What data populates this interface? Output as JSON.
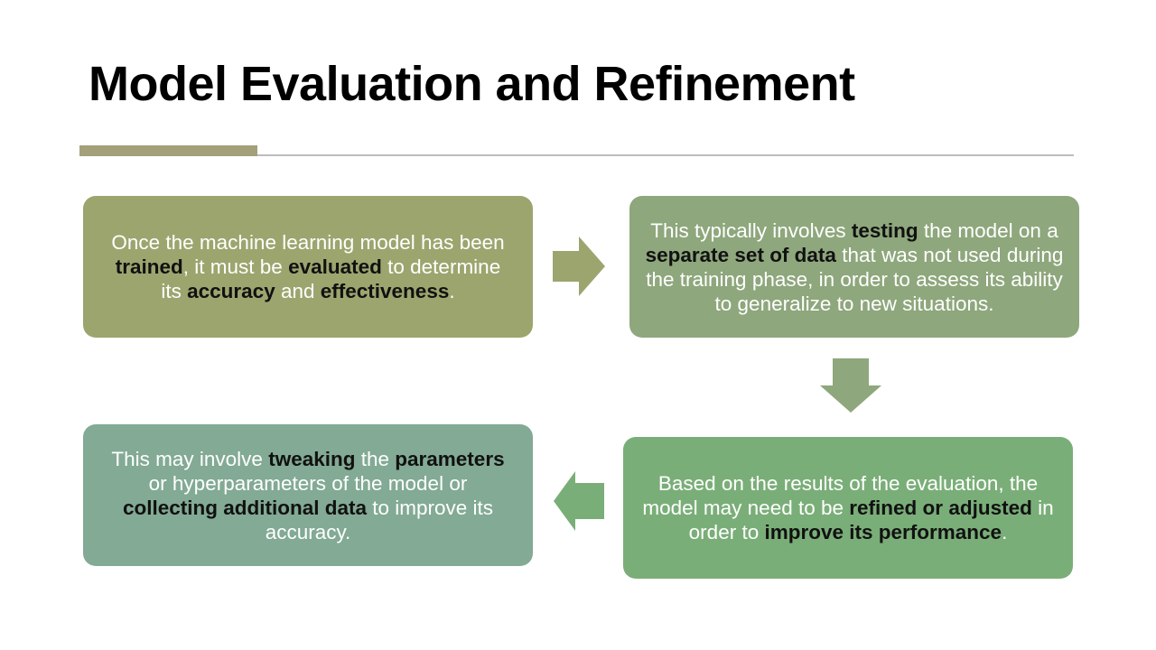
{
  "slide": {
    "title": "Model Evaluation and Refinement"
  },
  "colors": {
    "box1": "#9ca56e",
    "box2": "#8ea77c",
    "box3": "#7aae78",
    "box4": "#82aa94",
    "arrow1": "#9ca56e",
    "arrow2": "#8ea77c",
    "arrow3": "#7aae78",
    "accent_bar": "#a3a07a",
    "rule": "#bdbdbd"
  },
  "steps": [
    {
      "id": "step-1",
      "segments": [
        {
          "text": "Once the machine learning model has been ",
          "bold": false
        },
        {
          "text": "trained",
          "bold": true
        },
        {
          "text": ", it must be ",
          "bold": false
        },
        {
          "text": "evaluated",
          "bold": true
        },
        {
          "text": " to determine its ",
          "bold": false
        },
        {
          "text": "accuracy",
          "bold": true
        },
        {
          "text": " and ",
          "bold": false
        },
        {
          "text": "effectiveness",
          "bold": true
        },
        {
          "text": ".",
          "bold": false
        }
      ]
    },
    {
      "id": "step-2",
      "segments": [
        {
          "text": "This typically involves ",
          "bold": false
        },
        {
          "text": "testing",
          "bold": true
        },
        {
          "text": " the model on a ",
          "bold": false
        },
        {
          "text": "separate set of data",
          "bold": true
        },
        {
          "text": " that was not used during the training phase, in order to assess its ability to generalize to new situations.",
          "bold": false
        }
      ]
    },
    {
      "id": "step-3",
      "segments": [
        {
          "text": "Based on the results of the evaluation, the model may need to be ",
          "bold": false
        },
        {
          "text": "refined",
          "bold": true
        },
        {
          "text": " ",
          "bold": false
        },
        {
          "text": "or",
          "bold": true
        },
        {
          "text": " ",
          "bold": false
        },
        {
          "text": "adjusted",
          "bold": true
        },
        {
          "text": " in order to ",
          "bold": false
        },
        {
          "text": "improve its performance",
          "bold": true
        },
        {
          "text": ".",
          "bold": false
        }
      ]
    },
    {
      "id": "step-4",
      "segments": [
        {
          "text": "This may involve ",
          "bold": false
        },
        {
          "text": "tweaking",
          "bold": true
        },
        {
          "text": " the ",
          "bold": false
        },
        {
          "text": "parameters",
          "bold": true
        },
        {
          "text": " or hyperparameters of the model or ",
          "bold": false
        },
        {
          "text": "collecting additional data",
          "bold": true
        },
        {
          "text": " to improve its accuracy.",
          "bold": false
        }
      ]
    }
  ],
  "arrows": [
    {
      "direction": "right",
      "from": "step-1",
      "to": "step-2"
    },
    {
      "direction": "down",
      "from": "step-2",
      "to": "step-3"
    },
    {
      "direction": "left",
      "from": "step-3",
      "to": "step-4"
    }
  ]
}
